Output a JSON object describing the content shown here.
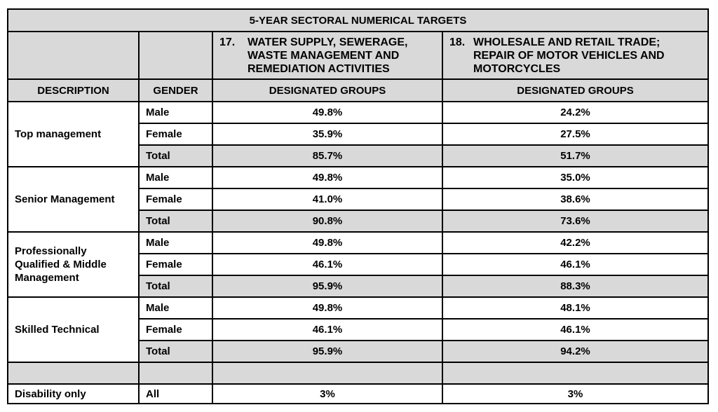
{
  "table": {
    "title": "5-YEAR SECTORAL NUMERICAL TARGETS",
    "sectors": [
      {
        "number": "17.",
        "name": "WATER SUPPLY, SEWERAGE, WASTE MANAGEMENT AND REMEDIATION ACTIVITIES"
      },
      {
        "number": "18.",
        "name": "WHOLESALE AND RETAIL TRADE; REPAIR OF MOTOR VEHICLES AND MOTORCYCLES"
      }
    ],
    "headers": {
      "description": "DESCRIPTION",
      "gender": "GENDER",
      "designated_groups": "DESIGNATED GROUPS"
    },
    "groups": [
      {
        "description": "Top management",
        "rows": [
          {
            "gender": "Male",
            "v17": "49.8%",
            "v18": "24.2%"
          },
          {
            "gender": "Female",
            "v17": "35.9%",
            "v18": "27.5%"
          },
          {
            "gender": "Total",
            "v17": "85.7%",
            "v18": "51.7%"
          }
        ]
      },
      {
        "description": "Senior Management",
        "rows": [
          {
            "gender": "Male",
            "v17": "49.8%",
            "v18": "35.0%"
          },
          {
            "gender": "Female",
            "v17": "41.0%",
            "v18": "38.6%"
          },
          {
            "gender": "Total",
            "v17": "90.8%",
            "v18": "73.6%"
          }
        ]
      },
      {
        "description": "Professionally Qualified & Middle Management",
        "rows": [
          {
            "gender": "Male",
            "v17": "49.8%",
            "v18": "42.2%"
          },
          {
            "gender": "Female",
            "v17": "46.1%",
            "v18": "46.1%"
          },
          {
            "gender": "Total",
            "v17": "95.9%",
            "v18": "88.3%"
          }
        ]
      },
      {
        "description": "Skilled Technical",
        "rows": [
          {
            "gender": "Male",
            "v17": "49.8%",
            "v18": "48.1%"
          },
          {
            "gender": "Female",
            "v17": "46.1%",
            "v18": "46.1%"
          },
          {
            "gender": "Total",
            "v17": "95.9%",
            "v18": "94.2%"
          }
        ]
      }
    ],
    "disability": {
      "description": "Disability only",
      "gender": "All",
      "v17": "3%",
      "v18": "3%"
    }
  }
}
